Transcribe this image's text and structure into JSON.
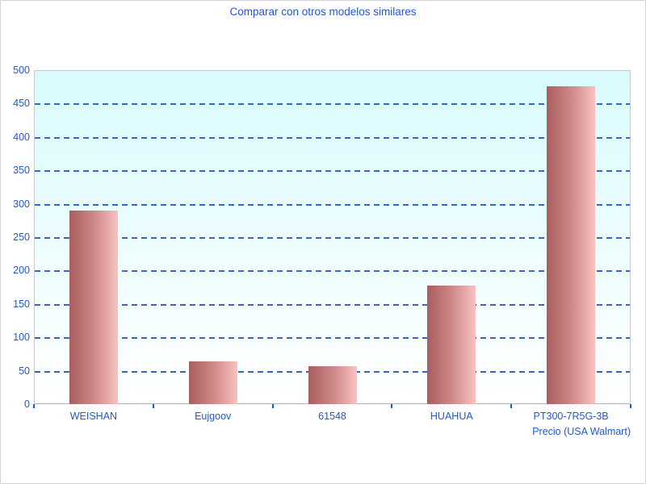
{
  "chart_data": {
    "type": "bar",
    "title": "Comparar con otros modelos similares",
    "categories": [
      {
        "label": "WEISHAN",
        "sublabel": ""
      },
      {
        "label": "Eujgoov",
        "sublabel": ""
      },
      {
        "label": "61548",
        "sublabel": ""
      },
      {
        "label": "HUAHUA",
        "sublabel": ""
      },
      {
        "label": "PT300-7R5G-3B",
        "sublabel": "Precio (USA Walmart)"
      }
    ],
    "values": [
      290,
      64,
      57,
      178,
      476
    ],
    "ylim": [
      0,
      500
    ],
    "ytick_step": 50,
    "ytick_labels": [
      "0",
      "50",
      "100",
      "150",
      "200",
      "250",
      "300",
      "350",
      "400",
      "450",
      "500"
    ],
    "grid": "horizontal-dashed",
    "legend": "none",
    "colors": {
      "title_text": "#1f58d6",
      "axis_text": "#2159cb",
      "gridline": "#3566cd",
      "tick": "#2159cb",
      "bar_gradient_left": "#a95d5e",
      "bar_gradient_mid": "#d18c8c",
      "bar_gradient_right": "#f9c2c2",
      "plot_bg_top": "#d9fbfd",
      "plot_bg_bottom": "#ffffff"
    }
  }
}
